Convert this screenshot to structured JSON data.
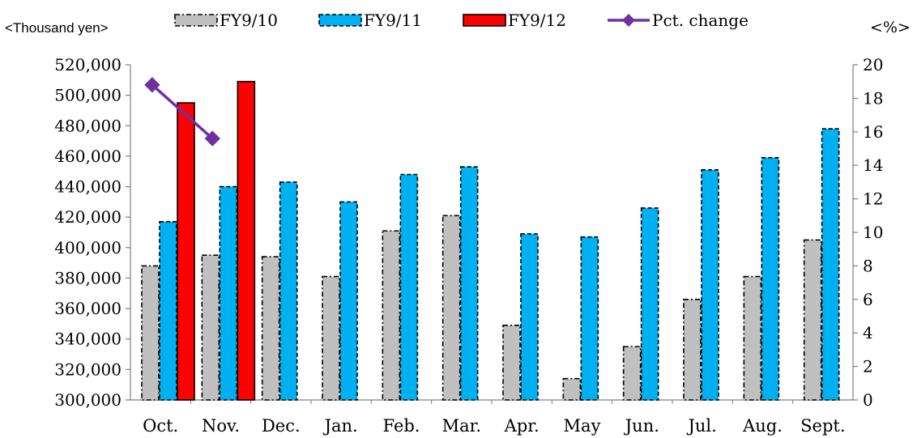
{
  "chart_data": {
    "type": "bar",
    "y_unit_label": "<Thousand yen>",
    "y2_unit_label": "<%>",
    "categories": [
      "Oct.",
      "Nov.",
      "Dec.",
      "Jan.",
      "Feb.",
      "Mar.",
      "Apr.",
      "May",
      "Jun.",
      "Jul.",
      "Aug.",
      "Sept."
    ],
    "series": [
      {
        "name": "FY9/10",
        "kind": "bar",
        "axis": "left",
        "color": "#c0c0c0",
        "values": [
          388000,
          395000,
          394000,
          381000,
          411000,
          421000,
          349000,
          314000,
          335000,
          366000,
          381000,
          405000
        ]
      },
      {
        "name": "FY9/11",
        "kind": "bar",
        "axis": "left",
        "color": "#00b0f0",
        "values": [
          417000,
          440000,
          443000,
          430000,
          448000,
          453000,
          409000,
          407000,
          426000,
          451000,
          459000,
          478000
        ]
      },
      {
        "name": "FY9/12",
        "kind": "bar",
        "axis": "left",
        "color": "#ff0000",
        "values": [
          495000,
          509000,
          null,
          null,
          null,
          null,
          null,
          null,
          null,
          null,
          null,
          null
        ]
      },
      {
        "name": "Pct. change",
        "kind": "line",
        "axis": "right",
        "color": "#7030a0",
        "values": [
          18.8,
          15.6,
          null,
          null,
          null,
          null,
          null,
          null,
          null,
          null,
          null,
          null
        ]
      }
    ],
    "y_ticks": [
      "300,000",
      "320,000",
      "340,000",
      "360,000",
      "380,000",
      "400,000",
      "420,000",
      "440,000",
      "460,000",
      "480,000",
      "500,000",
      "520,000"
    ],
    "ylim": [
      300000,
      520000
    ],
    "y2_ticks": [
      "0",
      "2",
      "4",
      "6",
      "8",
      "10",
      "12",
      "14",
      "16",
      "18",
      "20"
    ],
    "y2lim": [
      0,
      20
    ],
    "legend_position": "top",
    "grid": false
  }
}
